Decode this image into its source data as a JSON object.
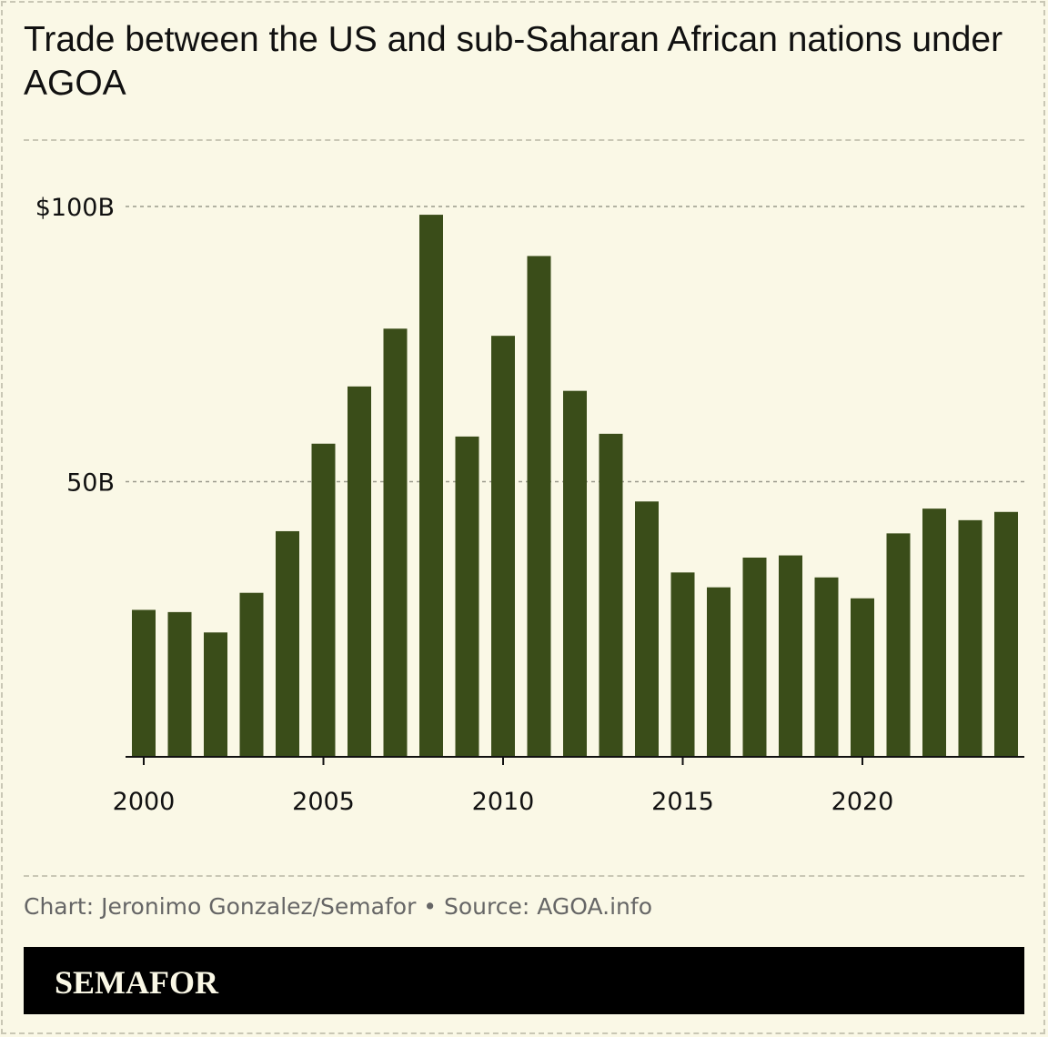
{
  "title": "Trade between the US and sub-Saharan African nations under AGOA",
  "footer": {
    "source": "Chart: Jeronimo Gonzalez/Semafor • Source: AGOA.info",
    "brand": "SEMAFOR"
  },
  "colors": {
    "background": "#faf8e6",
    "bar": "#3a4d19",
    "brand_bar": "#000000"
  },
  "chart_data": {
    "type": "bar",
    "title": "Trade between the US and sub-Saharan African nations under AGOA",
    "xlabel": "",
    "ylabel": "",
    "ylim": [
      0,
      100
    ],
    "grid": true,
    "y_ticks": [
      {
        "value": 100,
        "label": "$100B"
      },
      {
        "value": 50,
        "label": "50B"
      }
    ],
    "x_ticks": [
      {
        "value": 2000,
        "label": "2000"
      },
      {
        "value": 2005,
        "label": "2005"
      },
      {
        "value": 2010,
        "label": "2010"
      },
      {
        "value": 2015,
        "label": "2015"
      },
      {
        "value": 2020,
        "label": "2020"
      }
    ],
    "categories": [
      2000,
      2001,
      2002,
      2003,
      2004,
      2005,
      2006,
      2007,
      2008,
      2009,
      2010,
      2011,
      2012,
      2013,
      2014,
      2015,
      2016,
      2017,
      2018,
      2019,
      2020,
      2021,
      2022,
      2023,
      2024
    ],
    "values": [
      26.7,
      26.3,
      22.6,
      29.8,
      41.0,
      56.9,
      67.3,
      77.8,
      98.5,
      58.2,
      76.5,
      91.0,
      66.5,
      58.7,
      46.4,
      33.5,
      30.8,
      36.2,
      36.6,
      32.6,
      28.8,
      40.6,
      45.1,
      43.0,
      44.5
    ]
  }
}
